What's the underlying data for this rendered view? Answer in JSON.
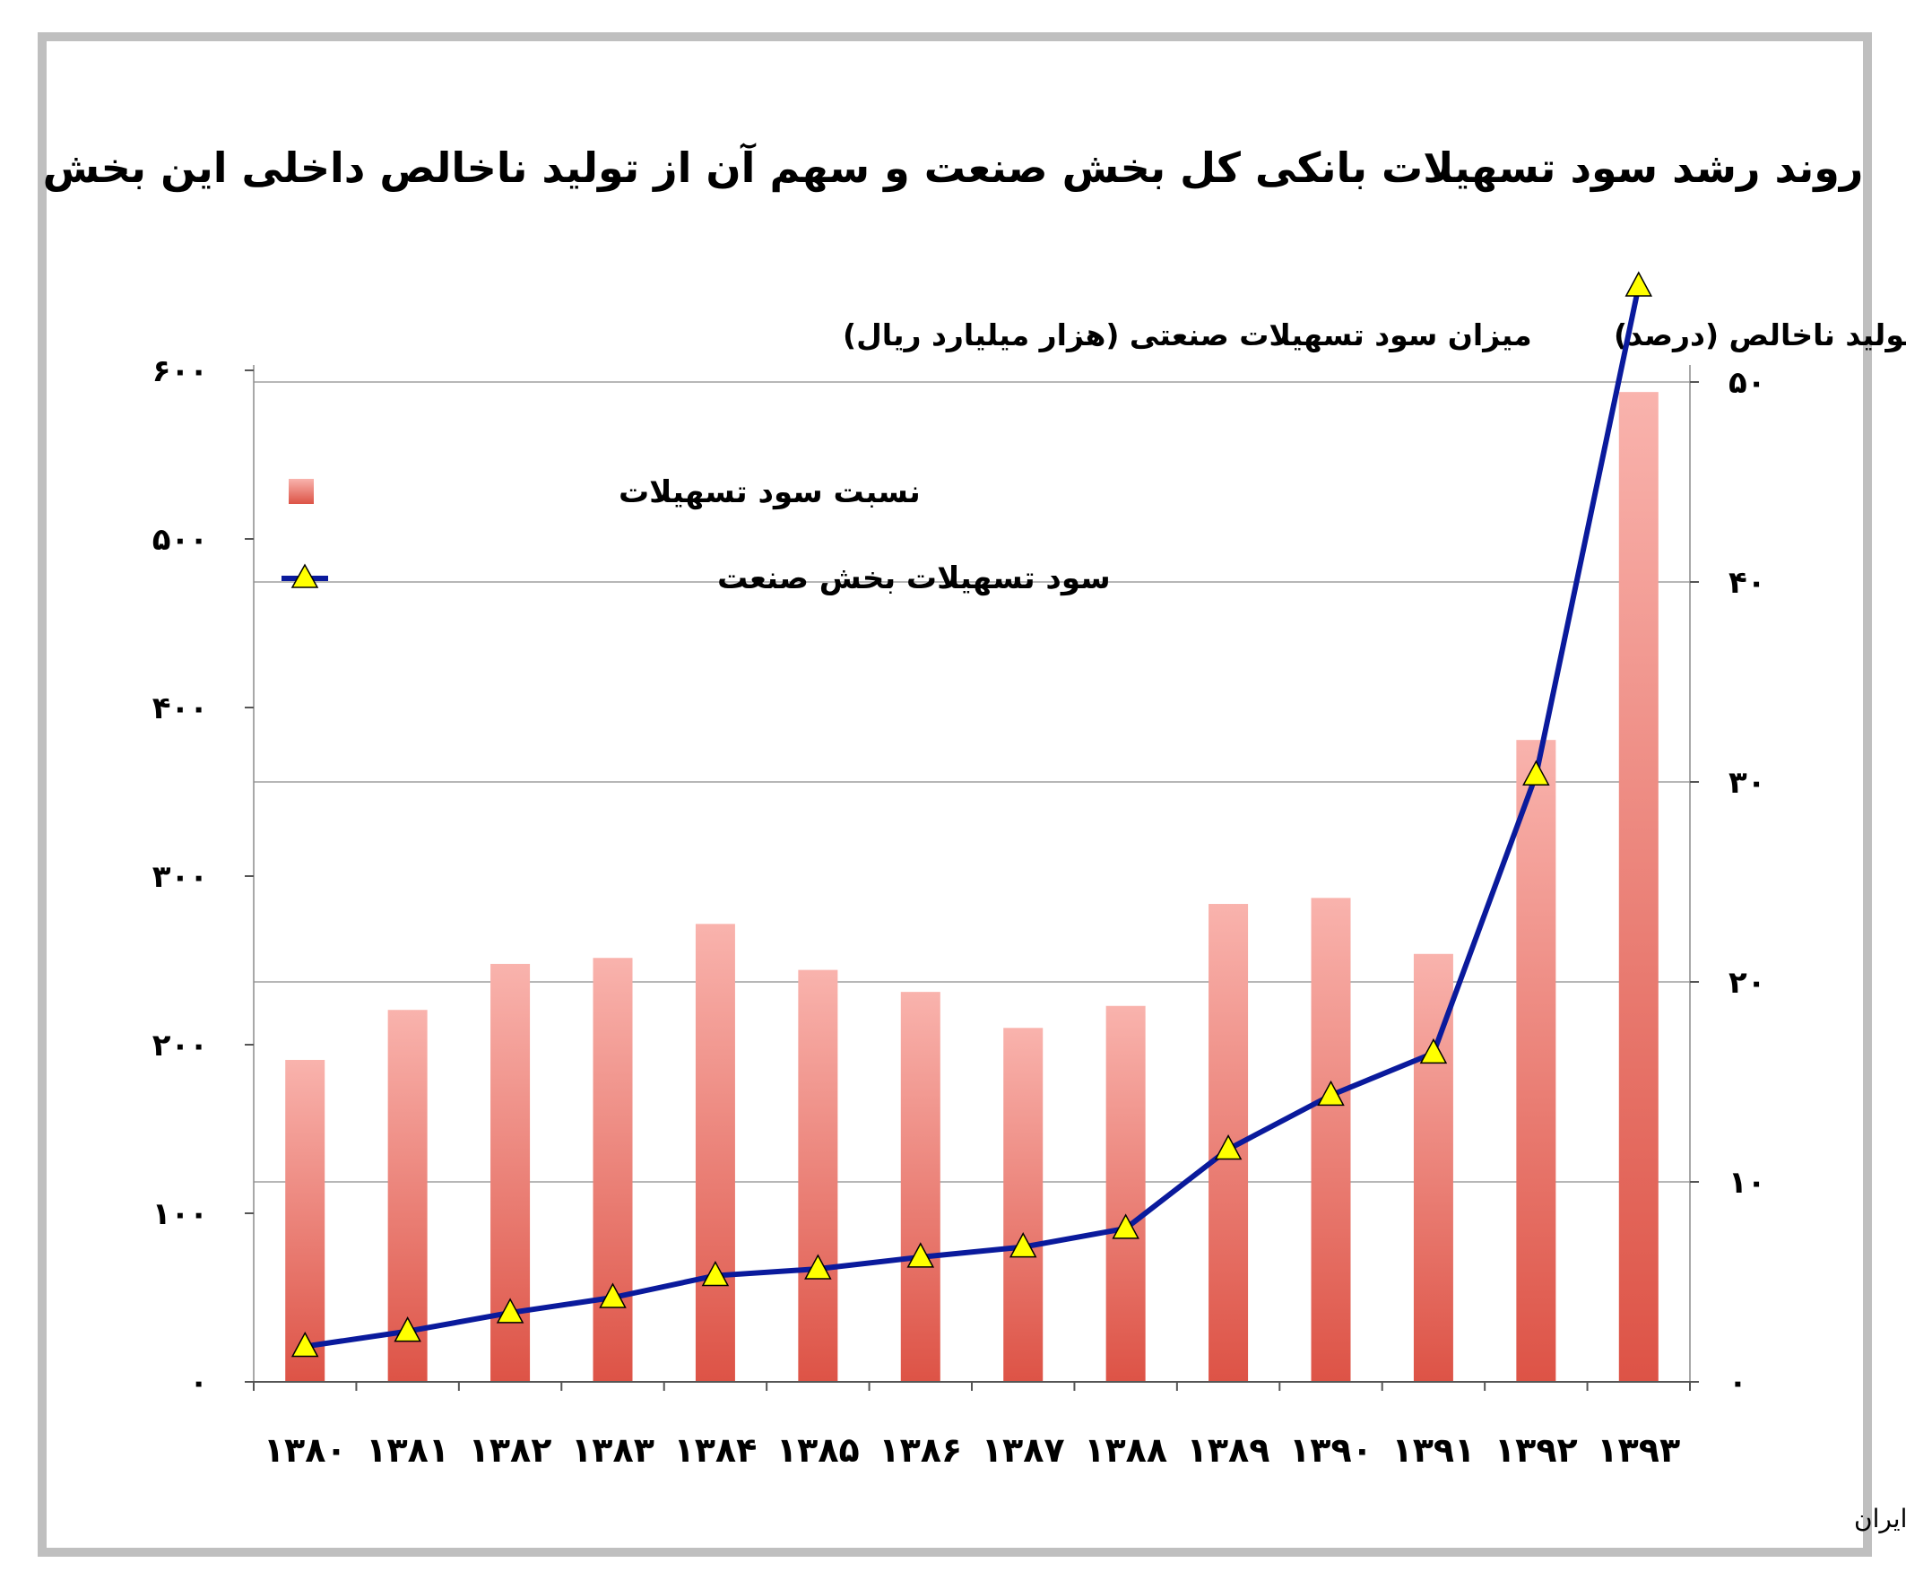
{
  "chart_data": {
    "type": "bar",
    "title": "روند رشد سود تسهیلات بانکی کل بخش صنعت و سهم آن از تولید ناخالص داخلی این بخش",
    "left_axis_label": "میزان سود تسهیلات صنعتی (هزار میلیارد ریال)",
    "right_axis_label": "سهم سود تسهیلات بانکی از تولید ناخالص (درصد)",
    "categories": [
      "۱۳۸۰",
      "۱۳۸۱",
      "۱۳۸۲",
      "۱۳۸۳",
      "۱۳۸۴",
      "۱۳۸۵",
      "۱۳۸۶",
      "۱۳۸۷",
      "۱۳۸۸",
      "۱۳۸۹",
      "۱۳۹۰",
      "۱۳۹۱",
      "۱۳۹۲",
      "۱۳۹۳"
    ],
    "left_ticks": [
      "۰",
      "۱۰۰",
      "۲۰۰",
      "۳۰۰",
      "۴۰۰",
      "۵۰۰",
      "۶۰۰"
    ],
    "right_ticks": [
      "۰",
      "۱۰",
      "۲۰",
      "۳۰",
      "۴۰",
      "۵۰"
    ],
    "left_ylim": [
      0,
      600
    ],
    "right_ylim": [
      0,
      50
    ],
    "grid": true,
    "legend_position": "top-left",
    "series": [
      {
        "name": "نسبت سود تسهیلات",
        "kind": "bar",
        "axis": "right",
        "color_top": "#f9b3ad",
        "color_bottom": "#dd5346",
        "values": [
          16.1,
          18.6,
          20.9,
          21.2,
          22.9,
          20.6,
          19.5,
          17.7,
          18.8,
          23.9,
          24.2,
          21.4,
          32.1,
          49.5
        ]
      },
      {
        "name": "سود تسهیلات بخش صنعت",
        "kind": "line",
        "axis": "left",
        "color": "#0a1a9c",
        "marker": "triangle",
        "marker_color": "#ffff00",
        "values": [
          21,
          30,
          41,
          50,
          63,
          67,
          74,
          80,
          91,
          138,
          170,
          195,
          360,
          650
        ]
      }
    ]
  },
  "source_note": "تحلیل و استنتاج: احسان سلطانی بر اساس داده های بانک مرکزی ایران"
}
